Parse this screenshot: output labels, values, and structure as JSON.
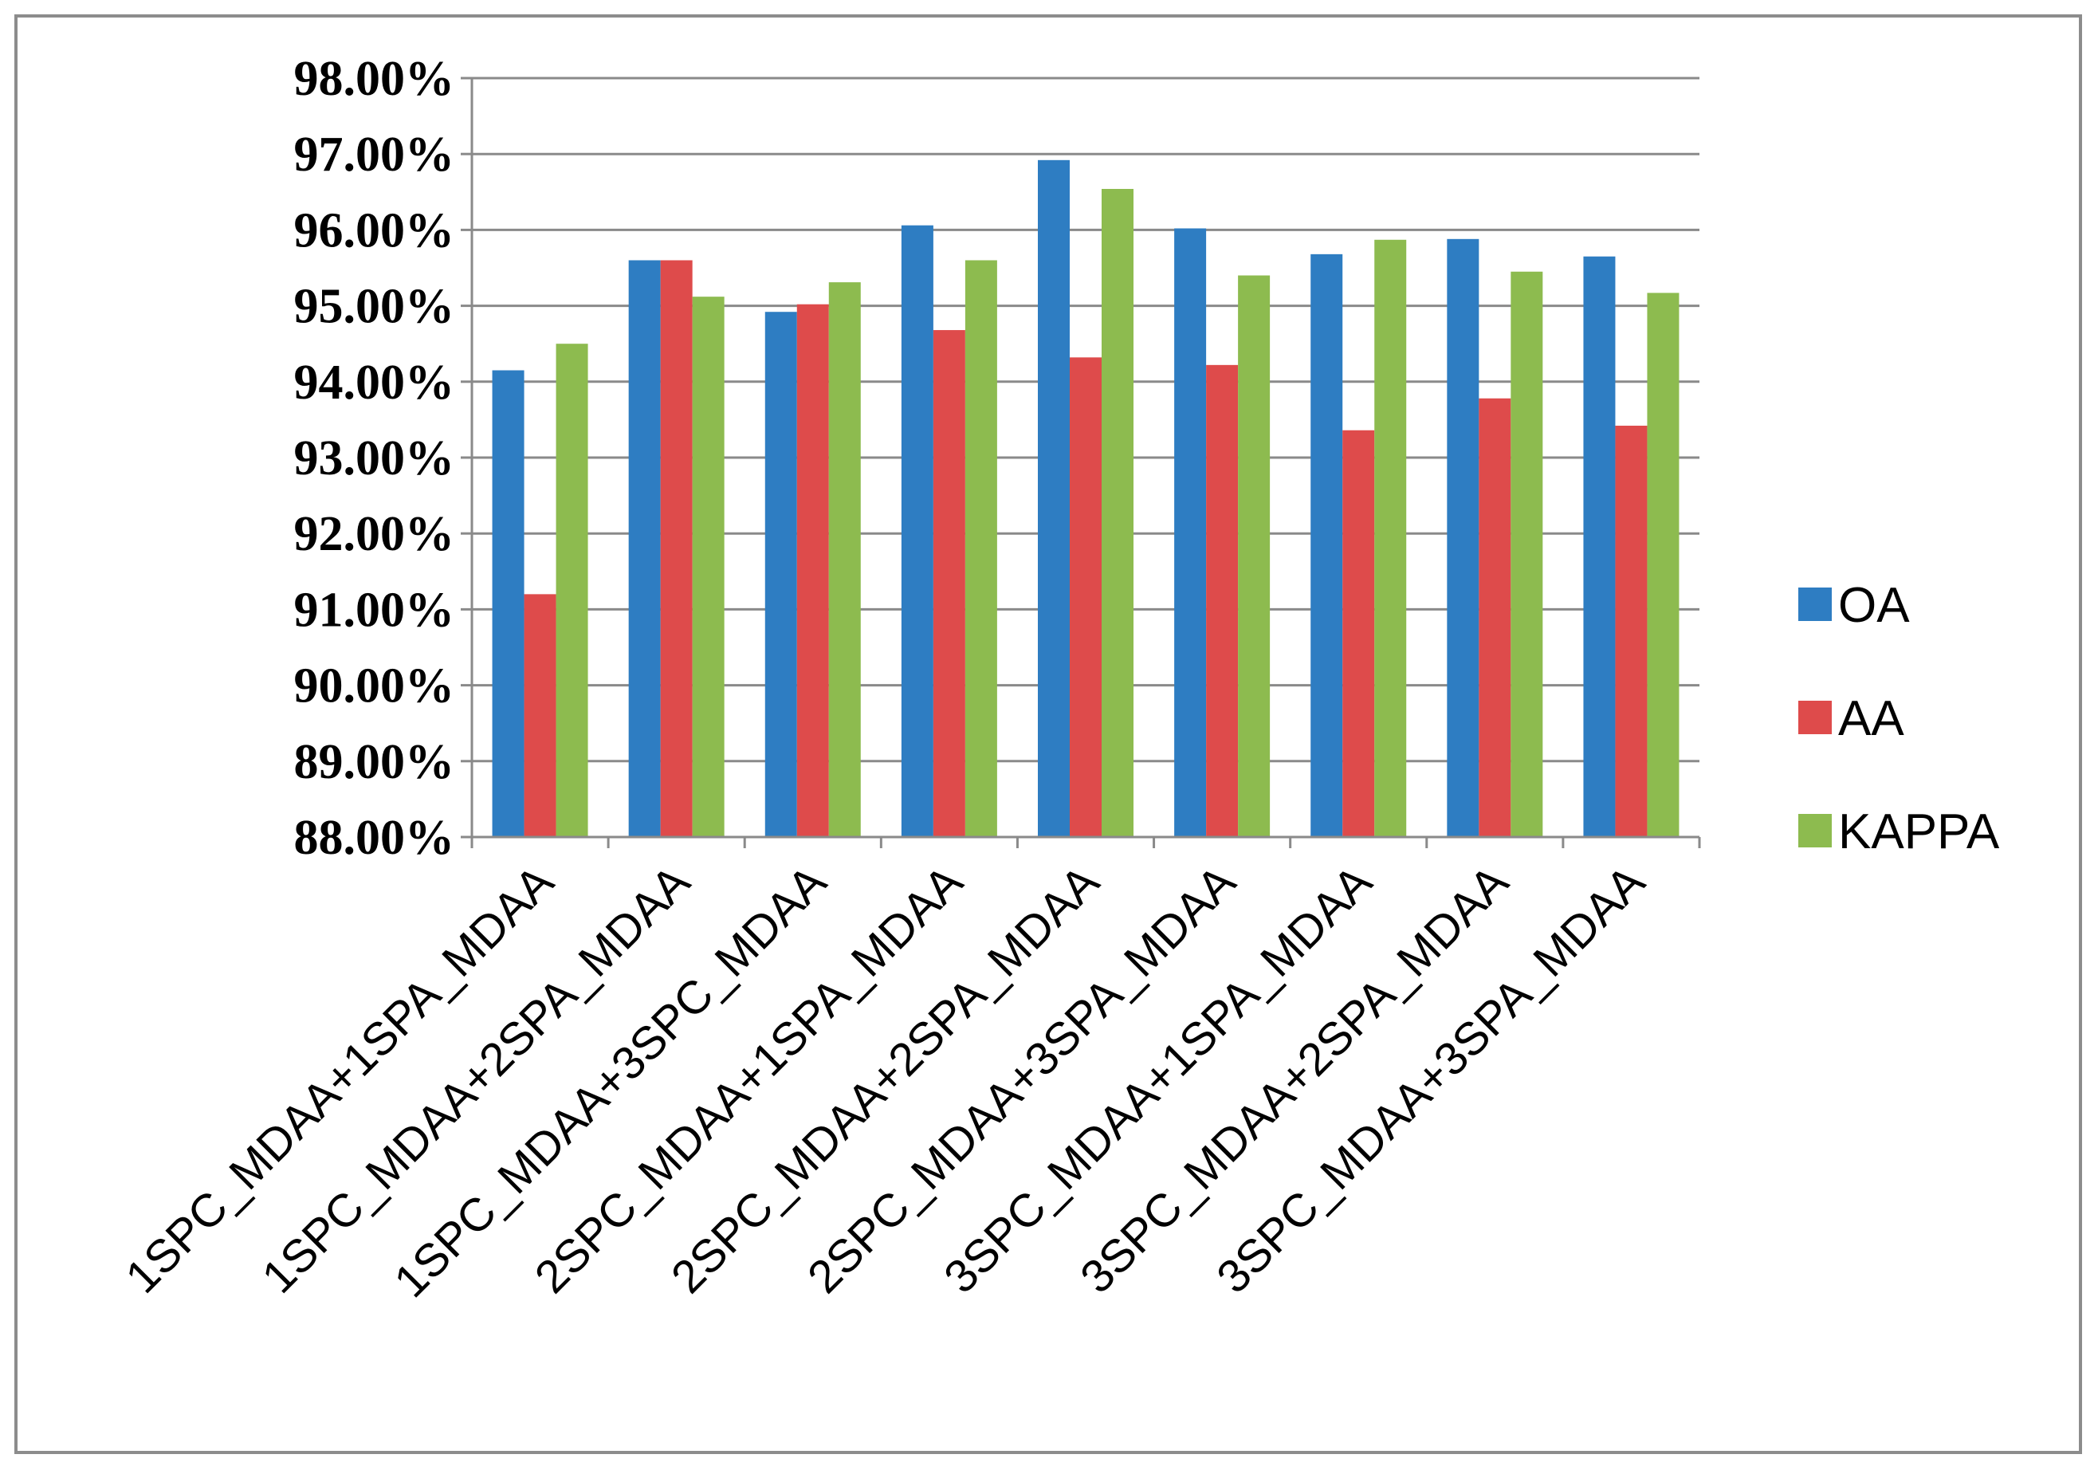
{
  "chart_data": {
    "type": "bar",
    "title": "",
    "xlabel": "",
    "ylabel": "",
    "ylim": [
      88,
      98
    ],
    "y_tick_step": 1,
    "y_tick_labels": [
      "88.00%",
      "89.00%",
      "90.00%",
      "91.00%",
      "92.00%",
      "93.00%",
      "94.00%",
      "95.00%",
      "96.00%",
      "97.00%",
      "98.00%"
    ],
    "grid": true,
    "legend_position": "right",
    "categories": [
      "1SPC_MDAA+1SPA_MDAA",
      "1SPC_MDAA+2SPA_MDAA",
      "1SPC_MDAA+3SPC_MDAA",
      "2SPC_MDAA+1SPA_MDAA",
      "2SPC_MDAA+2SPA_MDAA",
      "2SPC_MDAA+3SPA_MDAA",
      "3SPC_MDAA+1SPA_MDAA",
      "3SPC_MDAA+2SPA_MDAA",
      "3SPC_MDAA+3SPA_MDAA"
    ],
    "series": [
      {
        "name": "OA",
        "color": "#2e7dc2",
        "values": [
          94.15,
          95.6,
          94.92,
          96.06,
          96.92,
          96.02,
          95.68,
          95.88,
          95.65
        ]
      },
      {
        "name": "AA",
        "color": "#de4b4b",
        "values": [
          91.2,
          95.6,
          95.02,
          94.68,
          94.32,
          94.22,
          93.36,
          93.78,
          93.42
        ]
      },
      {
        "name": "KAPPA",
        "color": "#8dbb4f",
        "values": [
          94.5,
          95.12,
          95.31,
          95.6,
          96.54,
          95.4,
          95.87,
          95.45,
          95.17
        ]
      }
    ]
  }
}
